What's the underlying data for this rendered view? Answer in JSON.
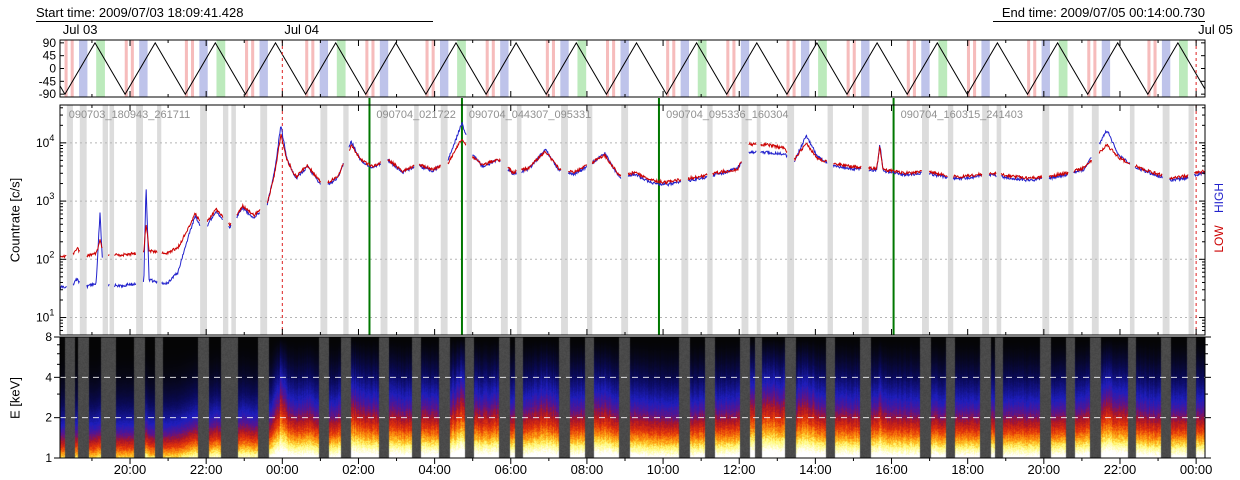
{
  "header": {
    "start_label": "Start time: 2009/07/03 18:09:41.428",
    "end_label": "End time: 2009/07/05 00:14:00.730"
  },
  "colors": {
    "red": "#cc0000",
    "blue": "#2222cc",
    "green_line": "#007700",
    "day_line": "#dd2222",
    "gap_band": "#dcdcdc",
    "band_pink": "#f5b5b5",
    "band_blue": "#b7bce8",
    "band_green": "#b5e8b5",
    "spec_gap": "#4a4a4a",
    "grid": "#b5b5b5",
    "file_label": "#909090",
    "axis": "#000000"
  },
  "axis": {
    "total_hours": 30.072,
    "tick_hours": [
      1.839,
      3.839,
      5.839,
      7.839,
      9.839,
      11.839,
      13.839,
      15.839,
      17.839,
      19.839,
      21.839,
      23.839,
      25.839,
      27.839,
      29.839
    ],
    "tick_labels": [
      "20:00",
      "22:00",
      "00:00",
      "02:00",
      "04:00",
      "06:00",
      "08:00",
      "10:00",
      "12:00",
      "14:00",
      "16:00",
      "18:00",
      "20:00",
      "22:00",
      "00:00"
    ],
    "minor_tick_start": 0.839,
    "minor_tick_step": 1
  },
  "chart_data": [
    {
      "name": "attitude-flag-panel",
      "type": "line",
      "ylim": [
        -100,
        100
      ],
      "yticks": [
        90,
        45,
        0,
        -45,
        -90
      ],
      "waveform": {
        "shape": "triangle",
        "amplitude": 90,
        "period_hours": 1.58,
        "first_peak_hour": 0.92
      },
      "day_labels": [
        {
          "label": "Jul 03",
          "t": 0.02
        },
        {
          "label": "Jul 04",
          "t": 5.839
        },
        {
          "label": "Jul 05",
          "t": 29.839
        }
      ],
      "day_lines_t": [
        5.839,
        29.839
      ],
      "bands": [
        [
          0.12,
          0.2,
          "p"
        ],
        [
          0.28,
          0.36,
          "p"
        ],
        [
          0.5,
          0.72,
          "b"
        ],
        [
          0.95,
          1.18,
          "g"
        ],
        [
          1.7,
          1.78,
          "p"
        ],
        [
          1.86,
          1.94,
          "p"
        ],
        [
          2.08,
          2.3,
          "b"
        ],
        [
          3.28,
          3.36,
          "p"
        ],
        [
          3.44,
          3.52,
          "p"
        ],
        [
          3.66,
          3.88,
          "b"
        ],
        [
          4.11,
          4.34,
          "g"
        ],
        [
          4.86,
          4.94,
          "p"
        ],
        [
          5.02,
          5.1,
          "p"
        ],
        [
          5.24,
          5.46,
          "b"
        ],
        [
          6.44,
          6.52,
          "p"
        ],
        [
          6.6,
          6.68,
          "p"
        ],
        [
          6.82,
          7.04,
          "b"
        ],
        [
          7.27,
          7.5,
          "g"
        ],
        [
          8.02,
          8.1,
          "p"
        ],
        [
          8.18,
          8.26,
          "p"
        ],
        [
          8.4,
          8.62,
          "b"
        ],
        [
          9.6,
          9.68,
          "p"
        ],
        [
          9.76,
          9.84,
          "p"
        ],
        [
          9.98,
          10.2,
          "b"
        ],
        [
          10.43,
          10.66,
          "g"
        ],
        [
          11.18,
          11.26,
          "p"
        ],
        [
          11.34,
          11.42,
          "p"
        ],
        [
          11.56,
          11.78,
          "b"
        ],
        [
          12.76,
          12.84,
          "p"
        ],
        [
          12.92,
          13.0,
          "p"
        ],
        [
          13.14,
          13.36,
          "b"
        ],
        [
          13.59,
          13.82,
          "g"
        ],
        [
          14.34,
          14.42,
          "p"
        ],
        [
          14.5,
          14.58,
          "p"
        ],
        [
          14.72,
          14.94,
          "b"
        ],
        [
          15.92,
          16.0,
          "p"
        ],
        [
          16.08,
          16.16,
          "p"
        ],
        [
          16.3,
          16.52,
          "b"
        ],
        [
          16.75,
          16.98,
          "g"
        ],
        [
          17.5,
          17.58,
          "p"
        ],
        [
          17.66,
          17.74,
          "p"
        ],
        [
          17.88,
          18.1,
          "b"
        ],
        [
          19.08,
          19.16,
          "p"
        ],
        [
          19.24,
          19.32,
          "p"
        ],
        [
          19.46,
          19.68,
          "b"
        ],
        [
          19.91,
          20.14,
          "g"
        ],
        [
          20.66,
          20.74,
          "p"
        ],
        [
          20.82,
          20.9,
          "p"
        ],
        [
          21.04,
          21.26,
          "b"
        ],
        [
          22.24,
          22.32,
          "p"
        ],
        [
          22.4,
          22.48,
          "p"
        ],
        [
          22.62,
          22.84,
          "b"
        ],
        [
          23.07,
          23.3,
          "g"
        ],
        [
          23.82,
          23.9,
          "p"
        ],
        [
          23.98,
          24.06,
          "p"
        ],
        [
          24.2,
          24.42,
          "b"
        ],
        [
          25.4,
          25.48,
          "p"
        ],
        [
          25.56,
          25.64,
          "p"
        ],
        [
          25.78,
          26.0,
          "b"
        ],
        [
          26.23,
          26.46,
          "g"
        ],
        [
          26.98,
          27.06,
          "p"
        ],
        [
          27.14,
          27.22,
          "p"
        ],
        [
          27.36,
          27.58,
          "b"
        ],
        [
          28.56,
          28.64,
          "p"
        ],
        [
          28.72,
          28.8,
          "p"
        ],
        [
          28.94,
          29.16,
          "b"
        ],
        [
          29.39,
          29.62,
          "g"
        ]
      ]
    },
    {
      "name": "countrate-panel",
      "type": "line",
      "ylabel": "Countrate [c/s]",
      "ylog_range": [
        0.7,
        4.65
      ],
      "ytick_exponents": [
        1,
        2,
        3,
        4
      ],
      "right_labels": [
        {
          "text": "HIGH",
          "color_key": "blue"
        },
        {
          "text": "LOW",
          "color_key": "red"
        }
      ],
      "series_names": [
        "LOW",
        "HIGH"
      ],
      "points": [
        [
          0.0,
          110,
          33
        ],
        [
          0.3,
          115,
          34
        ],
        [
          0.45,
          155,
          46
        ],
        [
          0.6,
          112,
          33
        ],
        [
          0.95,
          125,
          38
        ],
        [
          1.05,
          210,
          620
        ],
        [
          1.15,
          120,
          36
        ],
        [
          1.6,
          118,
          35
        ],
        [
          1.95,
          125,
          38
        ],
        [
          2.2,
          130,
          40
        ],
        [
          2.26,
          420,
          2000
        ],
        [
          2.34,
          140,
          44
        ],
        [
          2.8,
          125,
          38
        ],
        [
          3.1,
          160,
          60
        ],
        [
          3.35,
          320,
          220
        ],
        [
          3.55,
          620,
          560
        ],
        [
          3.75,
          360,
          290
        ],
        [
          4.1,
          720,
          660
        ],
        [
          4.45,
          390,
          340
        ],
        [
          4.8,
          820,
          760
        ],
        [
          5.1,
          560,
          510
        ],
        [
          5.45,
          950,
          900
        ],
        [
          5.65,
          3200,
          3600
        ],
        [
          5.8,
          14000,
          20000
        ],
        [
          5.95,
          5200,
          5600
        ],
        [
          6.2,
          2600,
          2400
        ],
        [
          6.5,
          4100,
          3900
        ],
        [
          6.9,
          1900,
          1700
        ],
        [
          7.3,
          2600,
          2500
        ],
        [
          7.65,
          9000,
          10500
        ],
        [
          7.9,
          5100,
          4900
        ],
        [
          8.2,
          3900,
          3700
        ],
        [
          8.6,
          5300,
          5100
        ],
        [
          9.0,
          3300,
          3100
        ],
        [
          9.4,
          4300,
          4100
        ],
        [
          9.8,
          3500,
          3300
        ],
        [
          10.2,
          4600,
          5200
        ],
        [
          10.56,
          12000,
          22000
        ],
        [
          10.8,
          6200,
          6700
        ],
        [
          11.1,
          4100,
          3900
        ],
        [
          11.5,
          5300,
          5100
        ],
        [
          11.9,
          3100,
          2900
        ],
        [
          12.3,
          3700,
          3500
        ],
        [
          12.75,
          7200,
          7700
        ],
        [
          13.1,
          3600,
          3400
        ],
        [
          13.5,
          3100,
          2900
        ],
        [
          13.9,
          4300,
          4100
        ],
        [
          14.3,
          6200,
          6700
        ],
        [
          14.7,
          2700,
          2500
        ],
        [
          15.1,
          3100,
          2900
        ],
        [
          15.5,
          2300,
          2100
        ],
        [
          15.9,
          2100,
          1900
        ],
        [
          16.4,
          2400,
          2200
        ],
        [
          16.9,
          2700,
          2500
        ],
        [
          17.4,
          3200,
          3000
        ],
        [
          17.8,
          3500,
          3700
        ],
        [
          18.1,
          9500,
          7000
        ],
        [
          18.6,
          9200,
          6900
        ],
        [
          19.0,
          8200,
          6400
        ],
        [
          19.3,
          5300,
          4900
        ],
        [
          19.6,
          9800,
          13500
        ],
        [
          19.9,
          5300,
          5700
        ],
        [
          20.3,
          4400,
          4100
        ],
        [
          20.8,
          3900,
          3600
        ],
        [
          21.45,
          3600,
          3400
        ],
        [
          21.53,
          8800,
          9800
        ],
        [
          21.62,
          3500,
          3300
        ],
        [
          21.95,
          3200,
          3000
        ],
        [
          22.3,
          3000,
          2800
        ],
        [
          22.7,
          3300,
          3100
        ],
        [
          23.1,
          2900,
          2700
        ],
        [
          23.6,
          2600,
          2400
        ],
        [
          24.0,
          2800,
          2600
        ],
        [
          24.5,
          3000,
          2800
        ],
        [
          24.9,
          2700,
          2500
        ],
        [
          25.4,
          2500,
          2300
        ],
        [
          25.9,
          2600,
          2400
        ],
        [
          26.4,
          3000,
          2800
        ],
        [
          26.9,
          3700,
          3500
        ],
        [
          27.5,
          9200,
          16500
        ],
        [
          27.8,
          5600,
          6200
        ],
        [
          28.2,
          4100,
          3900
        ],
        [
          28.7,
          3100,
          2900
        ],
        [
          29.2,
          2500,
          2300
        ],
        [
          29.6,
          2700,
          2500
        ],
        [
          30.07,
          3300,
          3100
        ]
      ],
      "gaps": [
        [
          0.18,
          0.34
        ],
        [
          0.52,
          0.7
        ],
        [
          1.12,
          1.26
        ],
        [
          1.3,
          1.42
        ],
        [
          2.0,
          2.18
        ],
        [
          2.55,
          2.66
        ],
        [
          3.68,
          3.86
        ],
        [
          4.28,
          4.42
        ],
        [
          4.5,
          4.62
        ],
        [
          5.26,
          5.44
        ],
        [
          6.84,
          7.02
        ],
        [
          7.44,
          7.58
        ],
        [
          8.42,
          8.6
        ],
        [
          9.3,
          9.42
        ],
        [
          10.0,
          10.18
        ],
        [
          10.68,
          10.82
        ],
        [
          11.58,
          11.76
        ],
        [
          12.0,
          12.12
        ],
        [
          13.16,
          13.34
        ],
        [
          13.84,
          13.98
        ],
        [
          14.74,
          14.92
        ],
        [
          16.32,
          16.5
        ],
        [
          17.0,
          17.14
        ],
        [
          17.9,
          18.08
        ],
        [
          18.3,
          18.4
        ],
        [
          19.1,
          19.28
        ],
        [
          20.16,
          20.3
        ],
        [
          21.06,
          21.24
        ],
        [
          22.64,
          22.82
        ],
        [
          23.32,
          23.46
        ],
        [
          24.22,
          24.4
        ],
        [
          24.6,
          24.72
        ],
        [
          25.8,
          25.98
        ],
        [
          26.48,
          26.62
        ],
        [
          27.1,
          27.28
        ],
        [
          28.1,
          28.22
        ],
        [
          28.96,
          29.14
        ],
        [
          29.64,
          29.78
        ]
      ],
      "file_boundaries_t": [
        8.128,
        10.557,
        15.731,
        21.893
      ],
      "file_labels": [
        {
          "text": "090703_180943_261711",
          "t": 0.15
        },
        {
          "text": "090704_021722",
          "t": 8.23
        },
        {
          "text": "090704_044307_095331",
          "t": 10.66
        },
        {
          "text": "090704_095336_160304",
          "t": 15.84
        },
        {
          "text": "090704_160315_241403",
          "t": 22.0
        }
      ],
      "day_lines_t": [
        5.839,
        29.839
      ]
    },
    {
      "name": "spectrogram-panel",
      "type": "heatmap",
      "ylabel": "E [keV]",
      "ylim_kev": [
        1,
        8
      ],
      "yticks": [
        1,
        2,
        4,
        8
      ],
      "white_gridlines_kev": [
        2,
        4
      ],
      "colormap": [
        "#050505",
        "#0a0a5a",
        "#1e1ebe",
        "#5a148c",
        "#aa1428",
        "#e1320a",
        "#fa820a",
        "#ffc828",
        "#fffa78",
        "#ffffff"
      ],
      "colormap_stops": [
        0,
        0.14,
        0.3,
        0.42,
        0.52,
        0.64,
        0.76,
        0.87,
        0.96,
        1.2
      ],
      "intensity_norm_log10": [
        1.9,
        4.35
      ],
      "spec_gap_pad_hours": 0.05
    }
  ]
}
